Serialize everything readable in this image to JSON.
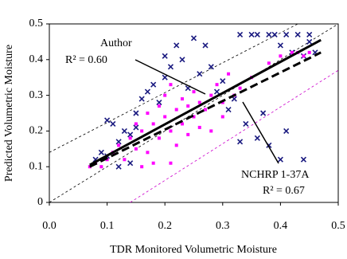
{
  "chart_data": {
    "type": "scatter",
    "xlabel": "TDR Monitored Volumetric Moisture",
    "ylabel": "Predicted Volumetric Moisture",
    "xlim": [
      0,
      0.5
    ],
    "ylim": [
      0,
      0.5
    ],
    "xticks": [
      {
        "value": 0,
        "label": "0.0"
      },
      0.1,
      0.2,
      0.3,
      0.4,
      0.5
    ],
    "yticks": [
      0,
      0.1,
      0.2,
      0.3,
      0.4,
      0.5
    ],
    "annotations": [
      "Author",
      "R² = 0.60",
      "NCHRP 1-37A",
      "R² = 0.67"
    ],
    "series": [
      {
        "color": "#1a1a80",
        "marker": "x",
        "x": [
          0.08,
          0.09,
          0.1,
          0.1,
          0.11,
          0.12,
          0.13,
          0.14,
          0.15,
          0.15,
          0.16,
          0.17,
          0.18,
          0.19,
          0.2,
          0.2,
          0.21,
          0.22,
          0.23,
          0.24,
          0.25,
          0.26,
          0.27,
          0.28,
          0.29,
          0.3,
          0.31,
          0.32,
          0.33,
          0.35,
          0.36,
          0.38,
          0.4,
          0.42,
          0.44,
          0.45,
          0.46,
          0.34,
          0.36,
          0.38,
          0.4,
          0.41,
          0.44,
          0.37,
          0.33,
          0.39,
          0.41,
          0.43,
          0.45,
          0.14,
          0.12
        ],
        "values": [
          0.12,
          0.14,
          0.13,
          0.23,
          0.22,
          0.17,
          0.2,
          0.19,
          0.25,
          0.21,
          0.29,
          0.31,
          0.33,
          0.28,
          0.35,
          0.41,
          0.38,
          0.44,
          0.4,
          0.32,
          0.46,
          0.36,
          0.44,
          0.38,
          0.31,
          0.34,
          0.26,
          0.29,
          0.47,
          0.47,
          0.47,
          0.47,
          0.44,
          0.42,
          0.41,
          0.45,
          0.42,
          0.22,
          0.18,
          0.16,
          0.12,
          0.2,
          0.12,
          0.25,
          0.17,
          0.47,
          0.47,
          0.47,
          0.47,
          0.11,
          0.1
        ]
      },
      {
        "color": "#ff00ff",
        "marker": "square",
        "x": [
          0.07,
          0.08,
          0.09,
          0.1,
          0.11,
          0.12,
          0.13,
          0.14,
          0.15,
          0.15,
          0.16,
          0.17,
          0.17,
          0.18,
          0.19,
          0.19,
          0.2,
          0.2,
          0.21,
          0.21,
          0.22,
          0.22,
          0.23,
          0.23,
          0.24,
          0.24,
          0.25,
          0.25,
          0.26,
          0.26,
          0.27,
          0.28,
          0.28,
          0.29,
          0.3,
          0.3,
          0.31,
          0.32,
          0.33,
          0.35,
          0.38,
          0.4,
          0.42,
          0.43,
          0.44,
          0.45,
          0.18,
          0.21,
          0.16
        ],
        "values": [
          0.1,
          0.11,
          0.1,
          0.12,
          0.14,
          0.16,
          0.12,
          0.18,
          0.15,
          0.22,
          0.2,
          0.25,
          0.14,
          0.22,
          0.27,
          0.18,
          0.24,
          0.3,
          0.2,
          0.33,
          0.26,
          0.16,
          0.29,
          0.22,
          0.27,
          0.19,
          0.31,
          0.24,
          0.21,
          0.28,
          0.26,
          0.3,
          0.2,
          0.33,
          0.28,
          0.24,
          0.36,
          0.3,
          0.32,
          0.35,
          0.39,
          0.41,
          0.42,
          0.42,
          0.41,
          0.42,
          0.11,
          0.11,
          0.1
        ]
      }
    ],
    "fit_lines": [
      {
        "color": "#000000",
        "dash": false,
        "x": [
          0.07,
          0.47
        ],
        "values": [
          0.105,
          0.455
        ]
      },
      {
        "color": "#000000",
        "dash": true,
        "x": [
          0.07,
          0.47
        ],
        "values": [
          0.1,
          0.42
        ]
      }
    ],
    "reference_lines": [
      {
        "color": "#000000",
        "x": [
          0,
          0.5
        ],
        "values": [
          0,
          0.5
        ]
      },
      {
        "color": "#000000",
        "x": [
          0,
          0.43
        ],
        "values": [
          0.14,
          0.5
        ]
      },
      {
        "color": "#cc00cc",
        "x": [
          0.14,
          0.5
        ],
        "values": [
          0,
          0.37
        ]
      }
    ]
  }
}
